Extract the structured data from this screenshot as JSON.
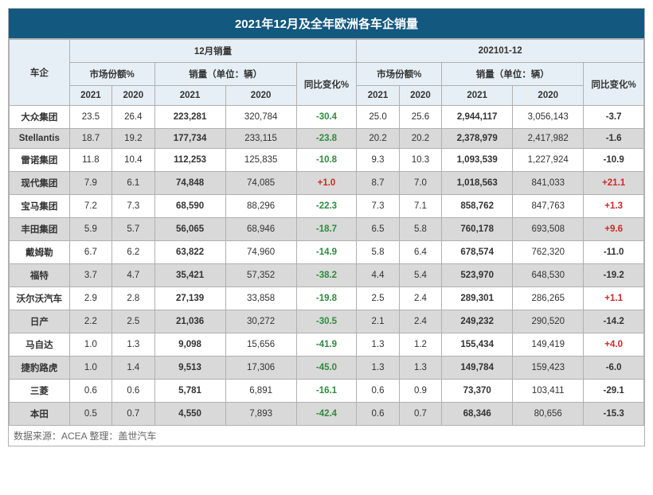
{
  "title": "2021年12月及全年欧洲各车企销量",
  "source": "数据来源：ACEA 整理：盖世汽车",
  "colors": {
    "header_bg": "#12587f",
    "header_text": "#ffffff",
    "subhead_bg": "#e6eff5",
    "alt_row_bg": "#d9d9d9",
    "border": "#b0b0b0",
    "positive": "#cc2a2a",
    "negative": "#2e8b3d"
  },
  "headers": {
    "company": "车企",
    "dec": "12月销量",
    "full": "202101-12",
    "share": "市场份额%",
    "volume": "销量（单位：辆）",
    "change": "同比变化%",
    "y2021": "2021",
    "y2020": "2020"
  },
  "rows": [
    {
      "name": "大众集团",
      "dec_share_21": "23.5",
      "dec_share_20": "26.4",
      "dec_vol_21": "223,281",
      "dec_vol_20": "320,784",
      "dec_chg": "-30.4",
      "dec_sign": "neg",
      "yr_share_21": "25.0",
      "yr_share_20": "25.6",
      "yr_vol_21": "2,944,117",
      "yr_vol_20": "3,056,143",
      "yr_chg": "-3.7",
      "yr_sign": "neu",
      "alt": false
    },
    {
      "name": "Stellantis",
      "dec_share_21": "18.7",
      "dec_share_20": "19.2",
      "dec_vol_21": "177,734",
      "dec_vol_20": "233,115",
      "dec_chg": "-23.8",
      "dec_sign": "neg",
      "yr_share_21": "20.2",
      "yr_share_20": "20.2",
      "yr_vol_21": "2,378,979",
      "yr_vol_20": "2,417,982",
      "yr_chg": "-1.6",
      "yr_sign": "neu",
      "alt": true
    },
    {
      "name": "雷诺集团",
      "dec_share_21": "11.8",
      "dec_share_20": "10.4",
      "dec_vol_21": "112,253",
      "dec_vol_20": "125,835",
      "dec_chg": "-10.8",
      "dec_sign": "neg",
      "yr_share_21": "9.3",
      "yr_share_20": "10.3",
      "yr_vol_21": "1,093,539",
      "yr_vol_20": "1,227,924",
      "yr_chg": "-10.9",
      "yr_sign": "neu",
      "alt": false
    },
    {
      "name": "现代集团",
      "dec_share_21": "7.9",
      "dec_share_20": "6.1",
      "dec_vol_21": "74,848",
      "dec_vol_20": "74,085",
      "dec_chg": "+1.0",
      "dec_sign": "pos",
      "yr_share_21": "8.7",
      "yr_share_20": "7.0",
      "yr_vol_21": "1,018,563",
      "yr_vol_20": "841,033",
      "yr_chg": "+21.1",
      "yr_sign": "pos",
      "alt": true
    },
    {
      "name": "宝马集团",
      "dec_share_21": "7.2",
      "dec_share_20": "7.3",
      "dec_vol_21": "68,590",
      "dec_vol_20": "88,296",
      "dec_chg": "-22.3",
      "dec_sign": "neg",
      "yr_share_21": "7.3",
      "yr_share_20": "7.1",
      "yr_vol_21": "858,762",
      "yr_vol_20": "847,763",
      "yr_chg": "+1.3",
      "yr_sign": "pos",
      "alt": false
    },
    {
      "name": "丰田集团",
      "dec_share_21": "5.9",
      "dec_share_20": "5.7",
      "dec_vol_21": "56,065",
      "dec_vol_20": "68,946",
      "dec_chg": "-18.7",
      "dec_sign": "neg",
      "yr_share_21": "6.5",
      "yr_share_20": "5.8",
      "yr_vol_21": "760,178",
      "yr_vol_20": "693,508",
      "yr_chg": "+9.6",
      "yr_sign": "pos",
      "alt": true
    },
    {
      "name": "戴姆勒",
      "dec_share_21": "6.7",
      "dec_share_20": "6.2",
      "dec_vol_21": "63,822",
      "dec_vol_20": "74,960",
      "dec_chg": "-14.9",
      "dec_sign": "neg",
      "yr_share_21": "5.8",
      "yr_share_20": "6.4",
      "yr_vol_21": "678,574",
      "yr_vol_20": "762,320",
      "yr_chg": "-11.0",
      "yr_sign": "neu",
      "alt": false
    },
    {
      "name": "福特",
      "dec_share_21": "3.7",
      "dec_share_20": "4.7",
      "dec_vol_21": "35,421",
      "dec_vol_20": "57,352",
      "dec_chg": "-38.2",
      "dec_sign": "neg",
      "yr_share_21": "4.4",
      "yr_share_20": "5.4",
      "yr_vol_21": "523,970",
      "yr_vol_20": "648,530",
      "yr_chg": "-19.2",
      "yr_sign": "neu",
      "alt": true
    },
    {
      "name": "沃尔沃汽车",
      "dec_share_21": "2.9",
      "dec_share_20": "2.8",
      "dec_vol_21": "27,139",
      "dec_vol_20": "33,858",
      "dec_chg": "-19.8",
      "dec_sign": "neg",
      "yr_share_21": "2.5",
      "yr_share_20": "2.4",
      "yr_vol_21": "289,301",
      "yr_vol_20": "286,265",
      "yr_chg": "+1.1",
      "yr_sign": "pos",
      "alt": false
    },
    {
      "name": "日产",
      "dec_share_21": "2.2",
      "dec_share_20": "2.5",
      "dec_vol_21": "21,036",
      "dec_vol_20": "30,272",
      "dec_chg": "-30.5",
      "dec_sign": "neg",
      "yr_share_21": "2.1",
      "yr_share_20": "2.4",
      "yr_vol_21": "249,232",
      "yr_vol_20": "290,520",
      "yr_chg": "-14.2",
      "yr_sign": "neu",
      "alt": true
    },
    {
      "name": "马自达",
      "dec_share_21": "1.0",
      "dec_share_20": "1.3",
      "dec_vol_21": "9,098",
      "dec_vol_20": "15,656",
      "dec_chg": "-41.9",
      "dec_sign": "neg",
      "yr_share_21": "1.3",
      "yr_share_20": "1.2",
      "yr_vol_21": "155,434",
      "yr_vol_20": "149,419",
      "yr_chg": "+4.0",
      "yr_sign": "pos",
      "alt": false
    },
    {
      "name": "捷豹路虎",
      "dec_share_21": "1.0",
      "dec_share_20": "1.4",
      "dec_vol_21": "9,513",
      "dec_vol_20": "17,306",
      "dec_chg": "-45.0",
      "dec_sign": "neg",
      "yr_share_21": "1.3",
      "yr_share_20": "1.3",
      "yr_vol_21": "149,784",
      "yr_vol_20": "159,423",
      "yr_chg": "-6.0",
      "yr_sign": "neu",
      "alt": true
    },
    {
      "name": "三菱",
      "dec_share_21": "0.6",
      "dec_share_20": "0.6",
      "dec_vol_21": "5,781",
      "dec_vol_20": "6,891",
      "dec_chg": "-16.1",
      "dec_sign": "neg",
      "yr_share_21": "0.6",
      "yr_share_20": "0.9",
      "yr_vol_21": "73,370",
      "yr_vol_20": "103,411",
      "yr_chg": "-29.1",
      "yr_sign": "neu",
      "alt": false
    },
    {
      "name": "本田",
      "dec_share_21": "0.5",
      "dec_share_20": "0.7",
      "dec_vol_21": "4,550",
      "dec_vol_20": "7,893",
      "dec_chg": "-42.4",
      "dec_sign": "neg",
      "yr_share_21": "0.6",
      "yr_share_20": "0.7",
      "yr_vol_21": "68,346",
      "yr_vol_20": "80,656",
      "yr_chg": "-15.3",
      "yr_sign": "neu",
      "alt": true
    }
  ]
}
